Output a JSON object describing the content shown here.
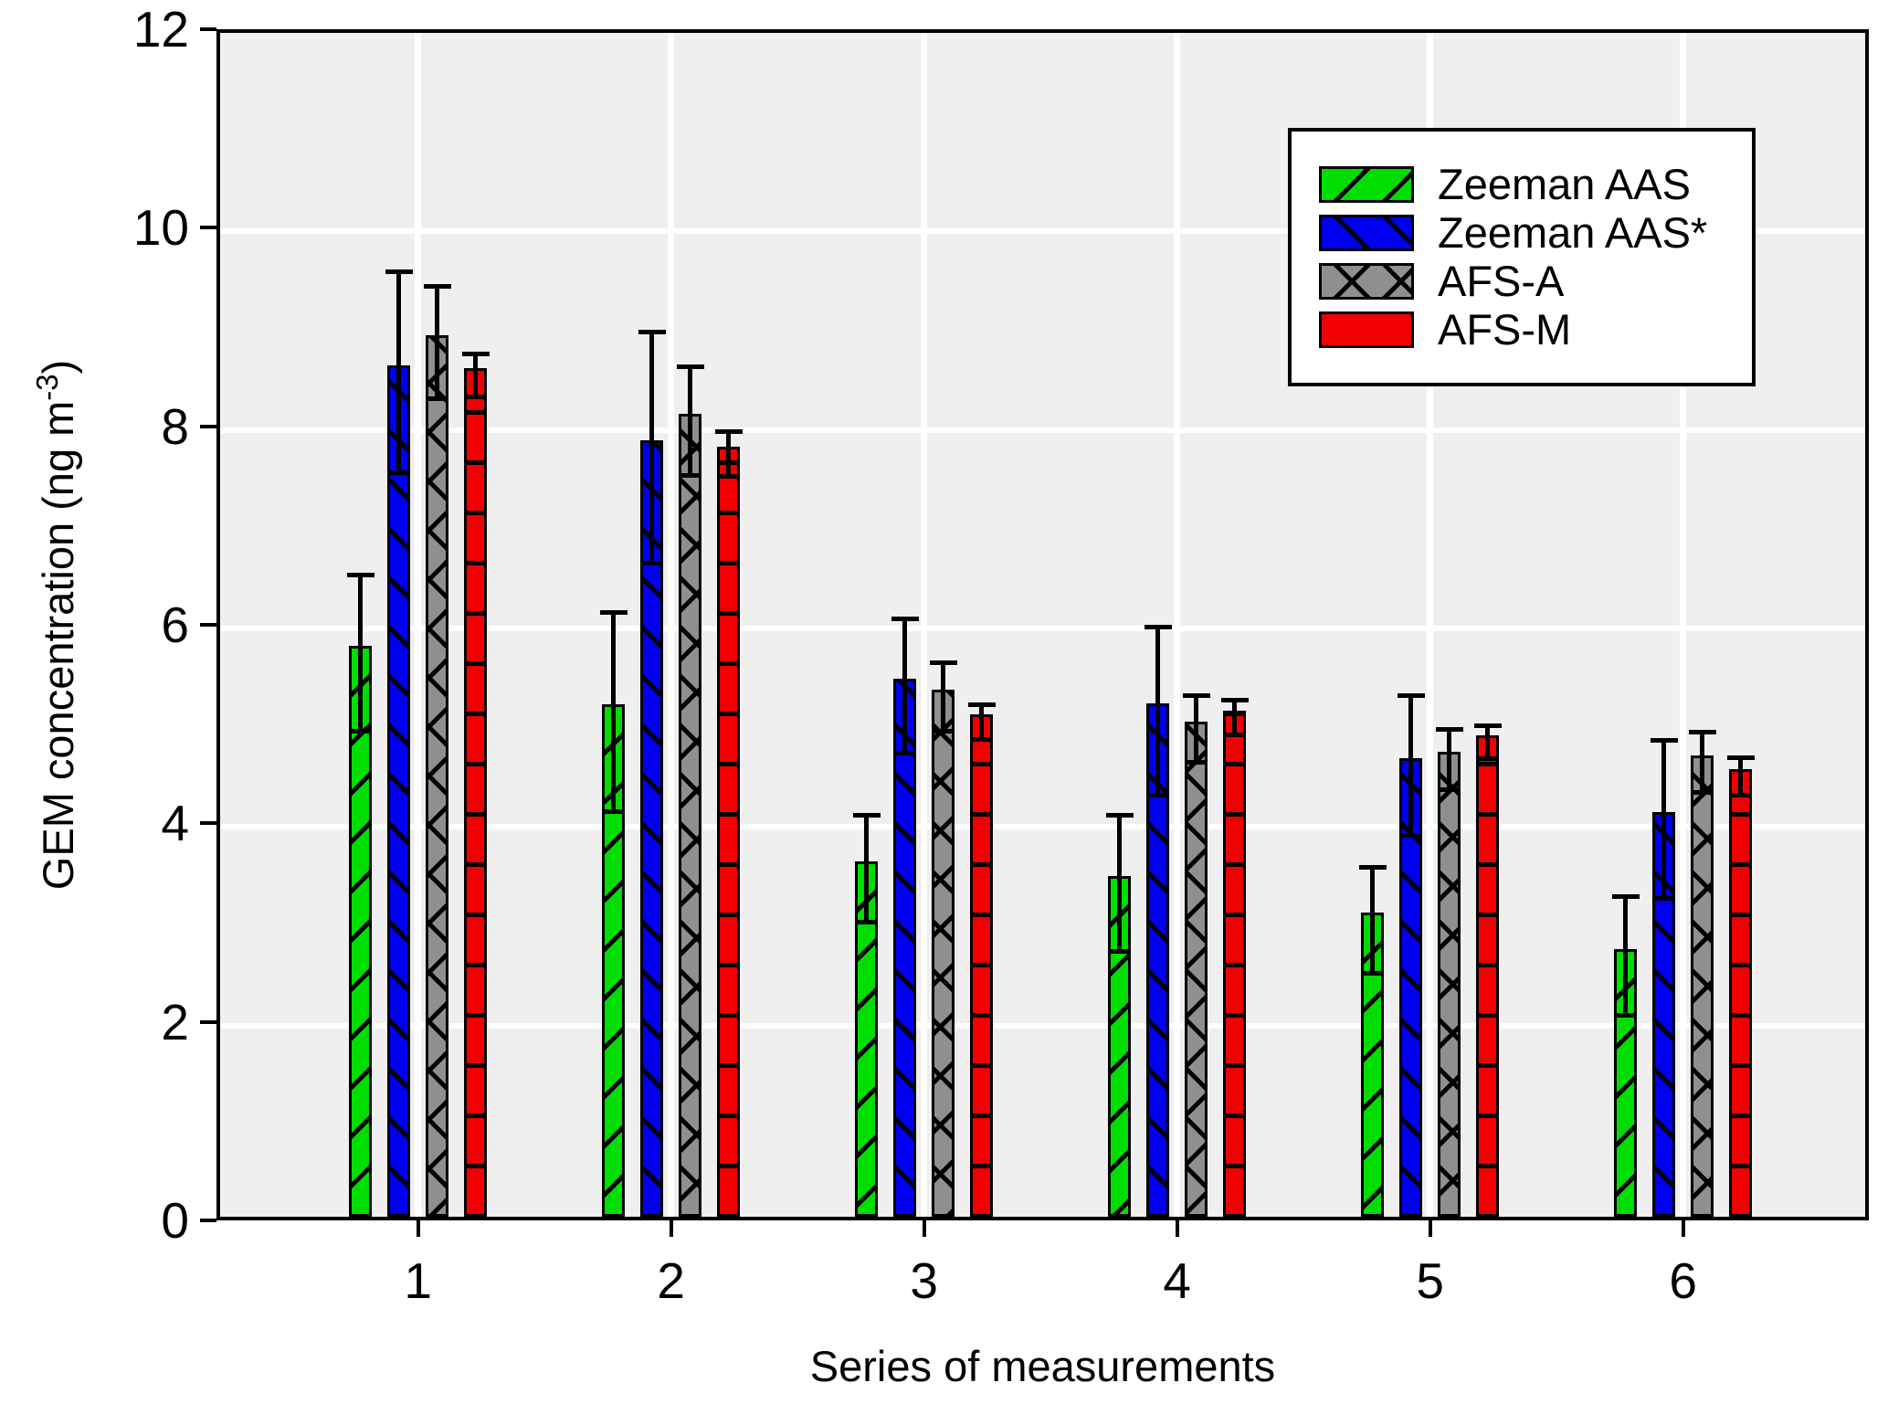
{
  "chart_data": {
    "type": "bar",
    "title": "",
    "xlabel": "Series of measurements",
    "ylabel": "GEM concentration (ng m-3)",
    "ylabel_prefix": "GEM concentration (ng m",
    "ylabel_superscript": "-3",
    "ylabel_suffix": ")",
    "categories": [
      "1",
      "2",
      "3",
      "4",
      "5",
      "6"
    ],
    "series": [
      {
        "name": "Zeeman AAS",
        "color": "#00dd00",
        "hatch": "forward-diagonal",
        "values": [
          5.75,
          5.16,
          3.58,
          3.43,
          3.06,
          2.7
        ],
        "errors": [
          0.79,
          1.01,
          0.54,
          0.69,
          0.54,
          0.6
        ]
      },
      {
        "name": "Zeeman AAS*",
        "color": "#0000ee",
        "hatch": "backward-diagonal",
        "values": [
          8.58,
          7.82,
          5.42,
          5.17,
          4.62,
          4.08
        ],
        "errors": [
          1.02,
          1.17,
          0.68,
          0.85,
          0.71,
          0.8
        ]
      },
      {
        "name": "AFS-A",
        "color": "#8f8f8f",
        "hatch": "cross-diagonal",
        "values": [
          8.88,
          8.09,
          5.31,
          4.99,
          4.68,
          4.65
        ],
        "errors": [
          0.57,
          0.55,
          0.35,
          0.34,
          0.31,
          0.31
        ]
      },
      {
        "name": "AFS-M",
        "color": "#f00000",
        "hatch": "horizontal",
        "values": [
          8.55,
          7.76,
          5.06,
          5.1,
          4.85,
          4.51
        ],
        "errors": [
          0.22,
          0.23,
          0.18,
          0.18,
          0.17,
          0.19
        ]
      }
    ],
    "ylim": [
      0,
      12
    ],
    "yticks": [
      0,
      2,
      4,
      6,
      8,
      10,
      12
    ],
    "grid": true,
    "grid_color": "#ffffff",
    "plot_background": "#efefef",
    "error_bar_color": "#000000",
    "legend_position": "upper right"
  }
}
